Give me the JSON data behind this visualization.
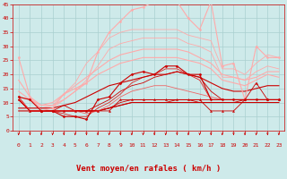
{
  "xlabel": "Vent moyen/en rafales ( km/h )",
  "xlim": [
    -0.5,
    23.5
  ],
  "ylim": [
    0,
    45
  ],
  "yticks": [
    0,
    5,
    10,
    15,
    20,
    25,
    30,
    35,
    40,
    45
  ],
  "xticks": [
    0,
    1,
    2,
    3,
    4,
    5,
    6,
    7,
    8,
    9,
    10,
    11,
    12,
    13,
    14,
    15,
    16,
    17,
    18,
    19,
    20,
    21,
    22,
    23
  ],
  "bg_color": "#ceeaea",
  "grid_color": "#aacfcf",
  "lines": [
    {
      "x": [
        0,
        1,
        2,
        3,
        4,
        5,
        6,
        7,
        8,
        9,
        10,
        11,
        12,
        13,
        14,
        15,
        16,
        17,
        18,
        19,
        20,
        21,
        22,
        23
      ],
      "y": [
        12,
        11,
        7,
        7,
        5,
        5,
        4,
        11,
        12,
        17,
        20,
        21,
        20,
        23,
        23,
        20,
        20,
        11,
        11,
        11,
        11,
        11,
        11,
        11
      ],
      "color": "#cc0000",
      "lw": 0.8,
      "marker": "D",
      "ms": 1.5,
      "zorder": 5
    },
    {
      "x": [
        0,
        1,
        2,
        3,
        4,
        5,
        6,
        7,
        8,
        9,
        10,
        11,
        12,
        13,
        14,
        15,
        16,
        17,
        18,
        19,
        20,
        21,
        22,
        23
      ],
      "y": [
        11,
        7,
        7,
        7,
        7,
        7,
        7,
        7,
        8,
        9,
        10,
        10,
        10,
        10,
        11,
        11,
        10,
        10,
        10,
        10,
        11,
        11,
        11,
        11
      ],
      "color": "#cc0000",
      "lw": 0.6,
      "marker": null,
      "ms": 0,
      "zorder": 2
    },
    {
      "x": [
        0,
        1,
        2,
        3,
        4,
        5,
        6,
        7,
        8,
        9,
        10,
        11,
        12,
        13,
        14,
        15,
        16,
        17,
        18,
        19,
        20,
        21,
        22,
        23
      ],
      "y": [
        12,
        7,
        7,
        7,
        9,
        7,
        7,
        9,
        11,
        14,
        16,
        17,
        19,
        20,
        21,
        20,
        19,
        14,
        11,
        11,
        11,
        11,
        11,
        11
      ],
      "color": "#cc0000",
      "lw": 0.6,
      "marker": null,
      "ms": 0,
      "zorder": 2
    },
    {
      "x": [
        0,
        1,
        2,
        3,
        4,
        5,
        6,
        7,
        8,
        9,
        10,
        11,
        12,
        13,
        14,
        15,
        16,
        17,
        18,
        19,
        20,
        21,
        22,
        23
      ],
      "y": [
        12,
        7,
        7,
        7,
        6,
        5,
        5,
        8,
        10,
        13,
        17,
        19,
        20,
        22,
        22,
        20,
        18,
        11,
        11,
        11,
        11,
        11,
        11,
        11
      ],
      "color": "#dd2222",
      "lw": 0.6,
      "marker": null,
      "ms": 0,
      "zorder": 2
    },
    {
      "x": [
        0,
        1,
        2,
        3,
        4,
        5,
        6,
        7,
        8,
        9,
        10,
        11,
        12,
        13,
        14,
        15,
        16,
        17,
        18,
        19,
        20,
        21,
        22,
        23
      ],
      "y": [
        26,
        12,
        7,
        8,
        13,
        15,
        17,
        28,
        35,
        39,
        43,
        44,
        46,
        46,
        46,
        40,
        36,
        46,
        23,
        24,
        11,
        30,
        26,
        26
      ],
      "color": "#ffaaaa",
      "lw": 0.8,
      "marker": "o",
      "ms": 1.5,
      "zorder": 4
    },
    {
      "x": [
        0,
        1,
        2,
        3,
        4,
        5,
        6,
        7,
        8,
        9,
        10,
        11,
        12,
        13,
        14,
        15,
        16,
        17,
        18,
        19,
        20,
        21,
        22,
        23
      ],
      "y": [
        12,
        11,
        8,
        9,
        13,
        17,
        24,
        28,
        33,
        35,
        36,
        36,
        36,
        36,
        36,
        34,
        33,
        32,
        22,
        22,
        20,
        24,
        27,
        26
      ],
      "color": "#ffaaaa",
      "lw": 0.6,
      "marker": null,
      "ms": 0,
      "zorder": 2
    },
    {
      "x": [
        0,
        1,
        2,
        3,
        4,
        5,
        6,
        7,
        8,
        9,
        10,
        11,
        12,
        13,
        14,
        15,
        16,
        17,
        18,
        19,
        20,
        21,
        22,
        23
      ],
      "y": [
        12,
        11,
        8,
        8,
        11,
        14,
        18,
        23,
        29,
        31,
        32,
        33,
        33,
        33,
        33,
        31,
        30,
        28,
        19,
        19,
        18,
        21,
        23,
        22
      ],
      "color": "#ffaaaa",
      "lw": 0.6,
      "marker": null,
      "ms": 0,
      "zorder": 2
    },
    {
      "x": [
        0,
        1,
        2,
        3,
        4,
        5,
        6,
        7,
        8,
        9,
        10,
        11,
        12,
        13,
        14,
        15,
        16,
        17,
        18,
        19,
        20,
        21,
        22,
        23
      ],
      "y": [
        7,
        7,
        7,
        7,
        7,
        7,
        7,
        7,
        8,
        9,
        10,
        10,
        10,
        10,
        10,
        10,
        10,
        10,
        10,
        10,
        10,
        10,
        10,
        10
      ],
      "color": "#cc0000",
      "lw": 0.8,
      "marker": null,
      "ms": 0,
      "zorder": 2
    },
    {
      "x": [
        0,
        1,
        2,
        3,
        4,
        5,
        6,
        7,
        8,
        9,
        10,
        11,
        12,
        13,
        14,
        15,
        16,
        17,
        18,
        19,
        20,
        21,
        22,
        23
      ],
      "y": [
        8,
        8,
        8,
        8,
        9,
        10,
        12,
        14,
        16,
        17,
        18,
        19,
        20,
        20,
        21,
        20,
        19,
        17,
        15,
        14,
        14,
        15,
        16,
        16
      ],
      "color": "#cc0000",
      "lw": 0.8,
      "marker": null,
      "ms": 0,
      "zorder": 2
    },
    {
      "x": [
        0,
        1,
        2,
        3,
        4,
        5,
        6,
        7,
        8,
        9,
        10,
        11,
        12,
        13,
        14,
        15,
        16,
        17,
        18,
        19,
        20,
        21,
        22,
        23
      ],
      "y": [
        18,
        12,
        9,
        10,
        13,
        16,
        19,
        22,
        25,
        27,
        28,
        29,
        29,
        29,
        29,
        28,
        26,
        24,
        20,
        19,
        18,
        19,
        21,
        21
      ],
      "color": "#ffaaaa",
      "lw": 0.8,
      "marker": null,
      "ms": 0,
      "zorder": 2
    },
    {
      "x": [
        0,
        1,
        2,
        3,
        4,
        5,
        6,
        7,
        8,
        9,
        10,
        11,
        12,
        13,
        14,
        15,
        16,
        17,
        18,
        19,
        20,
        21,
        22,
        23
      ],
      "y": [
        14,
        11,
        9,
        9,
        11,
        14,
        17,
        20,
        22,
        24,
        25,
        26,
        26,
        26,
        26,
        25,
        24,
        22,
        18,
        17,
        16,
        18,
        20,
        19
      ],
      "color": "#ffaaaa",
      "lw": 0.8,
      "marker": null,
      "ms": 0,
      "zorder": 2
    },
    {
      "x": [
        0,
        1,
        2,
        3,
        4,
        5,
        6,
        7,
        8,
        9,
        10,
        11,
        12,
        13,
        14,
        15,
        16,
        17,
        18,
        19,
        20,
        21,
        22,
        23
      ],
      "y": [
        11,
        7,
        7,
        7,
        7,
        7,
        7,
        7,
        8,
        10,
        11,
        11,
        11,
        11,
        11,
        11,
        11,
        11,
        11,
        11,
        11,
        11,
        11,
        11
      ],
      "color": "#cc0000",
      "lw": 0.6,
      "marker": null,
      "ms": 0,
      "zorder": 2
    },
    {
      "x": [
        0,
        1,
        2,
        3,
        4,
        5,
        6,
        7,
        8,
        9,
        10,
        11,
        12,
        13,
        14,
        15,
        16,
        17,
        18,
        19,
        20,
        21,
        22,
        23
      ],
      "y": [
        12,
        7,
        7,
        7,
        7,
        7,
        6,
        7,
        9,
        12,
        14,
        15,
        16,
        16,
        15,
        14,
        13,
        12,
        11,
        11,
        11,
        11,
        11,
        11
      ],
      "color": "#ee6666",
      "lw": 0.6,
      "marker": null,
      "ms": 0,
      "zorder": 2
    },
    {
      "x": [
        0,
        1,
        2,
        3,
        4,
        5,
        6,
        7,
        8,
        9,
        10,
        11,
        12,
        13,
        14,
        15,
        16,
        17,
        18,
        19,
        20,
        21,
        22,
        23
      ],
      "y": [
        11,
        7,
        7,
        7,
        7,
        7,
        7,
        7,
        7,
        11,
        11,
        11,
        11,
        11,
        11,
        11,
        11,
        7,
        7,
        7,
        11,
        17,
        11,
        11
      ],
      "color": "#cc0000",
      "lw": 0.6,
      "marker": "^",
      "ms": 1.5,
      "zorder": 6
    }
  ],
  "arrow_color": "#cc0000",
  "xlabel_color": "#cc0000",
  "tick_color": "#cc0000",
  "tick_fontsize": 4.5,
  "xlabel_fontsize": 6.5
}
